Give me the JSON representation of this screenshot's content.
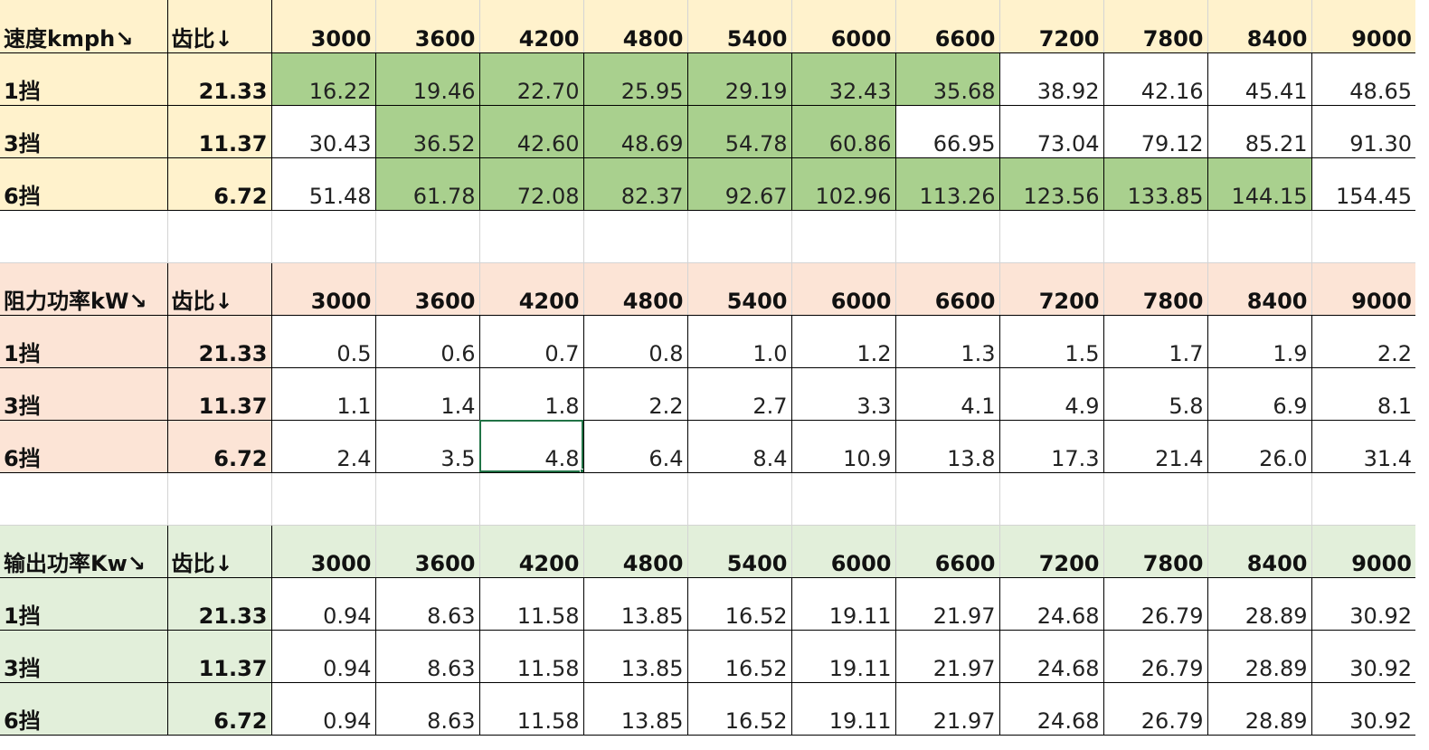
{
  "colors": {
    "speed_header": "#fff2cc",
    "resist_header": "#fce4d6",
    "output_header": "#e2efda",
    "highlight_green": "#a9d08e",
    "selection_border": "#217346"
  },
  "rpm": [
    "3000",
    "3600",
    "4200",
    "4800",
    "5400",
    "6000",
    "6600",
    "7200",
    "7800",
    "8400",
    "9000"
  ],
  "sections": [
    {
      "key": "speed",
      "title": "速度kmph↘",
      "ratio_header": "齿比↓",
      "header_color": "#fff2cc",
      "rows": [
        {
          "gear": "1挡",
          "ratio": "21.33",
          "values": [
            "16.22",
            "19.46",
            "22.70",
            "25.95",
            "29.19",
            "32.43",
            "35.68",
            "38.92",
            "42.16",
            "45.41",
            "48.65"
          ],
          "highlight": [
            true,
            true,
            true,
            true,
            true,
            true,
            true,
            false,
            false,
            false,
            false
          ]
        },
        {
          "gear": "3挡",
          "ratio": "11.37",
          "values": [
            "30.43",
            "36.52",
            "42.60",
            "48.69",
            "54.78",
            "60.86",
            "66.95",
            "73.04",
            "79.12",
            "85.21",
            "91.30"
          ],
          "highlight": [
            false,
            true,
            true,
            true,
            true,
            true,
            false,
            false,
            false,
            false,
            false
          ]
        },
        {
          "gear": "6挡",
          "ratio": "6.72",
          "values": [
            "51.48",
            "61.78",
            "72.08",
            "82.37",
            "92.67",
            "102.96",
            "113.26",
            "123.56",
            "133.85",
            "144.15",
            "154.45"
          ],
          "highlight": [
            false,
            true,
            true,
            true,
            true,
            true,
            true,
            true,
            true,
            true,
            false
          ]
        }
      ]
    },
    {
      "key": "resist",
      "title": "阻力功率kW↘",
      "ratio_header": "齿比↓",
      "header_color": "#fce4d6",
      "rows": [
        {
          "gear": "1挡",
          "ratio": "21.33",
          "values": [
            "0.5",
            "0.6",
            "0.7",
            "0.8",
            "1.0",
            "1.2",
            "1.3",
            "1.5",
            "1.7",
            "1.9",
            "2.2"
          ]
        },
        {
          "gear": "3挡",
          "ratio": "11.37",
          "values": [
            "1.1",
            "1.4",
            "1.8",
            "2.2",
            "2.7",
            "3.3",
            "4.1",
            "4.9",
            "5.8",
            "6.9",
            "8.1"
          ]
        },
        {
          "gear": "6挡",
          "ratio": "6.72",
          "values": [
            "2.4",
            "3.5",
            "4.8",
            "6.4",
            "8.4",
            "10.9",
            "13.8",
            "17.3",
            "21.4",
            "26.0",
            "31.4"
          ]
        }
      ]
    },
    {
      "key": "output",
      "title": "输出功率Kw↘",
      "ratio_header": "齿比↓",
      "header_color": "#e2efda",
      "rows": [
        {
          "gear": "1挡",
          "ratio": "21.33",
          "values": [
            "0.94",
            "8.63",
            "11.58",
            "13.85",
            "16.52",
            "19.11",
            "21.97",
            "24.68",
            "26.79",
            "28.89",
            "30.92"
          ]
        },
        {
          "gear": "3挡",
          "ratio": "11.37",
          "values": [
            "0.94",
            "8.63",
            "11.58",
            "13.85",
            "16.52",
            "19.11",
            "21.97",
            "24.68",
            "26.79",
            "28.89",
            "30.92"
          ]
        },
        {
          "gear": "6挡",
          "ratio": "6.72",
          "values": [
            "0.94",
            "8.63",
            "11.58",
            "13.85",
            "16.52",
            "19.11",
            "21.97",
            "24.68",
            "26.79",
            "28.89",
            "30.92"
          ]
        }
      ]
    }
  ],
  "selected_cell": {
    "section": "resist",
    "row": 2,
    "col": 2
  }
}
